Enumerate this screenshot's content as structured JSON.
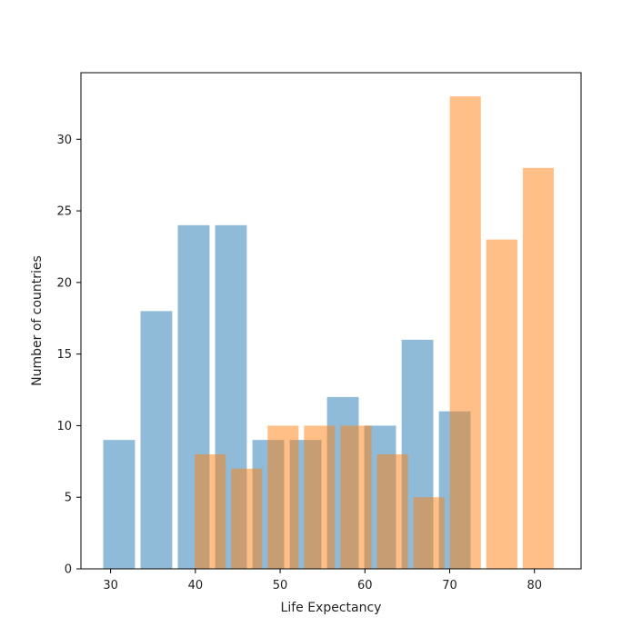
{
  "chart_data": {
    "type": "bar",
    "title": "",
    "xlabel": "Life Expectancy",
    "ylabel": "Number of countries",
    "xlim": [
      26.5,
      85.5
    ],
    "ylim": [
      0,
      34.65
    ],
    "xticks": [
      30,
      40,
      50,
      60,
      70,
      80
    ],
    "yticks": [
      0,
      5,
      10,
      15,
      20,
      25,
      30
    ],
    "grid": false,
    "series": [
      {
        "color": "#1f77b4",
        "opacity": 0.5,
        "bin_edges": [
          28.8,
          33.2,
          37.6,
          42.0,
          46.4,
          50.8,
          55.2,
          59.6,
          64.0,
          68.4,
          72.8
        ],
        "values": [
          9,
          18,
          24,
          24,
          9,
          9,
          12,
          10,
          16,
          11
        ]
      },
      {
        "color": "#ff7f0e",
        "opacity": 0.5,
        "bin_edges": [
          39.6,
          43.9,
          48.2,
          52.5,
          56.8,
          61.1,
          65.4,
          69.7,
          74.0,
          78.3,
          82.6
        ],
        "values": [
          8,
          7,
          10,
          10,
          10,
          8,
          5,
          33,
          23,
          28
        ]
      }
    ]
  }
}
